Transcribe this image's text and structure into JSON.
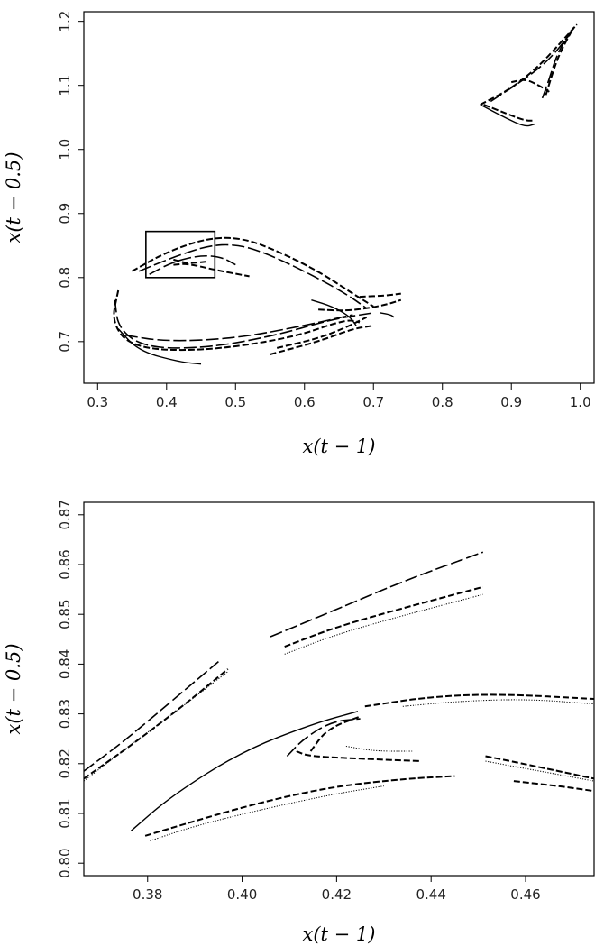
{
  "chart_data": [
    {
      "type": "scatter",
      "xlabel": "x(t − 1)",
      "ylabel": "x(t − 0.5)",
      "xlim": [
        0.28,
        1.02
      ],
      "ylim": [
        0.635,
        1.215
      ],
      "x_ticks": [
        0.3,
        0.4,
        0.5,
        0.6,
        0.7,
        0.8,
        0.9,
        1.0
      ],
      "y_ticks": [
        0.7,
        0.8,
        0.9,
        1.0,
        1.1,
        1.2
      ],
      "x_tick_labels": [
        "0.3",
        "0.4",
        "0.5",
        "0.6",
        "0.7",
        "0.8",
        "0.9",
        "1.0"
      ],
      "y_tick_labels": [
        "0.7",
        "0.8",
        "0.9",
        "1.0",
        "1.1",
        "1.2"
      ],
      "highlight_box": {
        "x": [
          0.37,
          0.47
        ],
        "y": [
          0.8,
          0.872
        ]
      },
      "curves": [
        {
          "points": [
            [
              0.33,
              0.78
            ],
            [
              0.32,
              0.73
            ],
            [
              0.35,
              0.69
            ],
            [
              0.45,
              0.685
            ],
            [
              0.58,
              0.705
            ],
            [
              0.66,
              0.735
            ],
            [
              0.68,
              0.73
            ]
          ],
          "dash": "dash"
        },
        {
          "points": [
            [
              0.325,
              0.765
            ],
            [
              0.33,
              0.72
            ],
            [
              0.37,
              0.69
            ],
            [
              0.46,
              0.69
            ],
            [
              0.56,
              0.71
            ],
            [
              0.64,
              0.735
            ],
            [
              0.7,
              0.745
            ]
          ],
          "dash": "long"
        },
        {
          "points": [
            [
              0.33,
              0.72
            ],
            [
              0.36,
              0.685
            ],
            [
              0.42,
              0.668
            ],
            [
              0.45,
              0.665
            ]
          ],
          "dash": "solid"
        },
        {
          "points": [
            [
              0.34,
              0.71
            ],
            [
              0.4,
              0.7
            ],
            [
              0.5,
              0.705
            ],
            [
              0.6,
              0.725
            ],
            [
              0.67,
              0.742
            ]
          ],
          "dash": "long"
        },
        {
          "points": [
            [
              0.55,
              0.68
            ],
            [
              0.62,
              0.7
            ],
            [
              0.67,
              0.72
            ],
            [
              0.7,
              0.725
            ]
          ],
          "dash": "dash"
        },
        {
          "points": [
            [
              0.56,
              0.69
            ],
            [
              0.62,
              0.705
            ],
            [
              0.66,
              0.722
            ],
            [
              0.69,
              0.738
            ]
          ],
          "dash": "dash"
        },
        {
          "points": [
            [
              0.61,
              0.765
            ],
            [
              0.64,
              0.755
            ],
            [
              0.665,
              0.74
            ],
            [
              0.675,
              0.725
            ]
          ],
          "dash": "solid"
        },
        {
          "points": [
            [
              0.62,
              0.75
            ],
            [
              0.66,
              0.748
            ],
            [
              0.69,
              0.752
            ],
            [
              0.72,
              0.758
            ],
            [
              0.74,
              0.765
            ]
          ],
          "dash": "dash"
        },
        {
          "points": [
            [
              0.68,
              0.77
            ],
            [
              0.72,
              0.772
            ],
            [
              0.74,
              0.775
            ]
          ],
          "dash": "dash"
        },
        {
          "points": [
            [
              0.71,
              0.745
            ],
            [
              0.725,
              0.742
            ],
            [
              0.73,
              0.738
            ]
          ],
          "dash": "solid"
        },
        {
          "points": [
            [
              0.35,
              0.81
            ],
            [
              0.4,
              0.84
            ],
            [
              0.46,
              0.862
            ],
            [
              0.51,
              0.862
            ],
            [
              0.56,
              0.842
            ],
            [
              0.62,
              0.81
            ],
            [
              0.67,
              0.775
            ],
            [
              0.7,
              0.755
            ]
          ],
          "dash": "dash"
        },
        {
          "points": [
            [
              0.36,
              0.81
            ],
            [
              0.41,
              0.832
            ],
            [
              0.46,
              0.85
            ],
            [
              0.5,
              0.852
            ],
            [
              0.54,
              0.84
            ],
            [
              0.6,
              0.81
            ],
            [
              0.66,
              0.775
            ],
            [
              0.69,
              0.752
            ]
          ],
          "dash": "long"
        },
        {
          "points": [
            [
              0.375,
              0.805
            ],
            [
              0.41,
              0.825
            ],
            [
              0.45,
              0.835
            ],
            [
              0.48,
              0.832
            ],
            [
              0.5,
              0.82
            ]
          ],
          "dash": "long"
        },
        {
          "points": [
            [
              0.41,
              0.82
            ],
            [
              0.43,
              0.822
            ],
            [
              0.47,
              0.812
            ],
            [
              0.52,
              0.802
            ]
          ],
          "dash": "dash"
        },
        {
          "points": [
            [
              0.41,
              0.828
            ],
            [
              0.43,
              0.822
            ],
            [
              0.46,
              0.825
            ]
          ],
          "dash": "dash"
        },
        {
          "points": [
            [
              0.855,
              1.07
            ],
            [
              0.89,
              1.05
            ],
            [
              0.92,
              1.035
            ],
            [
              0.935,
              1.04
            ]
          ],
          "dash": "solid"
        },
        {
          "points": [
            [
              0.86,
              1.07
            ],
            [
              0.895,
              1.055
            ],
            [
              0.92,
              1.045
            ],
            [
              0.935,
              1.045
            ]
          ],
          "dash": "dash"
        },
        {
          "points": [
            [
              0.855,
              1.07
            ],
            [
              0.9,
              1.095
            ],
            [
              0.94,
              1.13
            ],
            [
              0.97,
              1.165
            ],
            [
              0.995,
              1.195
            ]
          ],
          "dash": "dash"
        },
        {
          "points": [
            [
              0.87,
              1.075
            ],
            [
              0.92,
              1.11
            ],
            [
              0.955,
              1.14
            ],
            [
              0.985,
              1.18
            ]
          ],
          "dash": "long"
        },
        {
          "points": [
            [
              0.95,
              1.085
            ],
            [
              0.96,
              1.12
            ],
            [
              0.97,
              1.15
            ],
            [
              0.99,
              1.19
            ]
          ],
          "dash": "dash"
        },
        {
          "points": [
            [
              0.945,
              1.08
            ],
            [
              0.955,
              1.11
            ],
            [
              0.965,
              1.145
            ],
            [
              0.98,
              1.175
            ],
            [
              0.995,
              1.195
            ]
          ],
          "dash": "long"
        },
        {
          "points": [
            [
              0.9,
              1.105
            ],
            [
              0.92,
              1.11
            ],
            [
              0.94,
              1.1
            ],
            [
              0.955,
              1.09
            ]
          ],
          "dash": "dash"
        }
      ]
    },
    {
      "type": "scatter",
      "xlabel": "x(t − 1)",
      "ylabel": "x(t − 0.5)",
      "xlim": [
        0.3665,
        0.4745
      ],
      "ylim": [
        0.7975,
        0.8725
      ],
      "x_ticks": [
        0.38,
        0.4,
        0.42,
        0.44,
        0.46
      ],
      "y_ticks": [
        0.8,
        0.81,
        0.82,
        0.83,
        0.84,
        0.85,
        0.86,
        0.87
      ],
      "x_tick_labels": [
        "0.38",
        "0.40",
        "0.42",
        "0.44",
        "0.46"
      ],
      "y_tick_labels": [
        "0.80",
        "0.81",
        "0.82",
        "0.83",
        "0.84",
        "0.85",
        "0.86",
        "0.87"
      ],
      "curves": [
        {
          "points": [
            [
              0.3665,
              0.8185
            ],
            [
              0.375,
              0.8245
            ],
            [
              0.385,
              0.8325
            ],
            [
              0.395,
              0.8405
            ]
          ],
          "dash": "long"
        },
        {
          "points": [
            [
              0.3665,
              0.8165
            ],
            [
              0.376,
              0.8235
            ],
            [
              0.386,
              0.8305
            ],
            [
              0.397,
              0.8385
            ]
          ],
          "dash": "dots"
        },
        {
          "points": [
            [
              0.3665,
              0.817
            ],
            [
              0.377,
              0.824
            ],
            [
              0.388,
              0.832
            ],
            [
              0.397,
              0.839
            ]
          ],
          "dash": "dash"
        },
        {
          "points": [
            [
              0.406,
              0.8455
            ],
            [
              0.42,
              0.851
            ],
            [
              0.435,
              0.857
            ],
            [
              0.451,
              0.8625
            ]
          ],
          "dash": "long"
        },
        {
          "points": [
            [
              0.409,
              0.8435
            ],
            [
              0.42,
              0.8475
            ],
            [
              0.435,
              0.8515
            ],
            [
              0.451,
              0.8555
            ]
          ],
          "dash": "dash"
        },
        {
          "points": [
            [
              0.409,
              0.842
            ],
            [
              0.42,
              0.846
            ],
            [
              0.435,
              0.85
            ],
            [
              0.451,
              0.854
            ]
          ],
          "dash": "dots"
        },
        {
          "points": [
            [
              0.3765,
              0.8065
            ],
            [
              0.385,
              0.8135
            ],
            [
              0.4,
              0.8225
            ],
            [
              0.415,
              0.828
            ],
            [
              0.4245,
              0.8305
            ]
          ],
          "dash": "solid"
        },
        {
          "points": [
            [
              0.3795,
              0.8055
            ],
            [
              0.39,
              0.8085
            ],
            [
              0.405,
              0.8125
            ],
            [
              0.42,
              0.8155
            ],
            [
              0.435,
              0.817
            ],
            [
              0.445,
              0.8175
            ]
          ],
          "dash": "dash"
        },
        {
          "points": [
            [
              0.3805,
              0.8045
            ],
            [
              0.39,
              0.8075
            ],
            [
              0.405,
              0.811
            ],
            [
              0.42,
              0.814
            ],
            [
              0.43,
              0.8155
            ]
          ],
          "dash": "dots"
        },
        {
          "points": [
            [
              0.4145,
              0.8225
            ],
            [
              0.418,
              0.827
            ],
            [
              0.425,
              0.8295
            ]
          ],
          "dash": "dash"
        },
        {
          "points": [
            [
              0.4115,
              0.8225
            ],
            [
              0.414,
              0.8215
            ],
            [
              0.425,
              0.821
            ],
            [
              0.438,
              0.8205
            ]
          ],
          "dash": "dash"
        },
        {
          "points": [
            [
              0.422,
              0.8235
            ],
            [
              0.428,
              0.8225
            ],
            [
              0.436,
              0.8225
            ]
          ],
          "dash": "dots"
        },
        {
          "points": [
            [
              0.4095,
              0.8215
            ],
            [
              0.413,
              0.825
            ],
            [
              0.419,
              0.8285
            ],
            [
              0.425,
              0.829
            ]
          ],
          "dash": "long"
        },
        {
          "points": [
            [
              0.426,
              0.8315
            ],
            [
              0.44,
              0.8335
            ],
            [
              0.455,
              0.834
            ],
            [
              0.4745,
              0.833
            ]
          ],
          "dash": "dash"
        },
        {
          "points": [
            [
              0.434,
              0.8315
            ],
            [
              0.445,
              0.8325
            ],
            [
              0.46,
              0.833
            ],
            [
              0.4745,
              0.832
            ]
          ],
          "dash": "dots"
        },
        {
          "points": [
            [
              0.4515,
              0.8215
            ],
            [
              0.462,
              0.8195
            ],
            [
              0.4745,
              0.817
            ]
          ],
          "dash": "dash"
        },
        {
          "points": [
            [
              0.4515,
              0.8205
            ],
            [
              0.463,
              0.8185
            ],
            [
              0.4745,
              0.8165
            ]
          ],
          "dash": "dots"
        },
        {
          "points": [
            [
              0.4575,
              0.8165
            ],
            [
              0.467,
              0.8155
            ],
            [
              0.4745,
              0.8145
            ]
          ],
          "dash": "dash"
        }
      ]
    }
  ]
}
